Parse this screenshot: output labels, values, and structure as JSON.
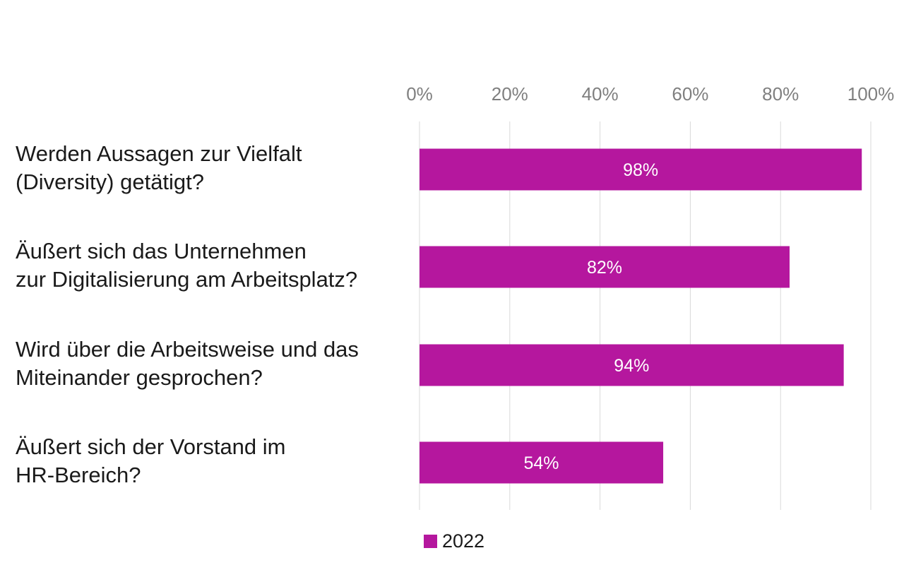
{
  "chart_data": {
    "type": "bar",
    "orientation": "horizontal",
    "categories": [
      "Werden Aussagen zur Vielfalt\n(Diversity) getätigt?",
      "Äußert sich das Unternehmen\nzur Digitalisierung am Arbeitsplatz?",
      "Wird über die Arbeitsweise und das\nMiteinander gesprochen?",
      "Äußert sich der Vorstand im\nHR-Bereich?"
    ],
    "series": [
      {
        "name": "2022",
        "values": [
          98,
          82,
          94,
          54
        ],
        "data_labels": [
          "98%",
          "82%",
          "94%",
          "54%"
        ],
        "color": "#b5179e"
      }
    ],
    "x_axis": {
      "ticks": [
        0,
        20,
        40,
        60,
        80,
        100
      ],
      "tick_labels": [
        "0%",
        "20%",
        "40%",
        "60%",
        "80%",
        "100%"
      ],
      "range": [
        0,
        100
      ],
      "position": "top"
    },
    "grid": true,
    "legend_position": "bottom",
    "colors": {
      "bar": "#b5179e",
      "grid": "#d9d9d9",
      "tick_text": "#7f7f7f",
      "data_label": "#ffffff"
    }
  }
}
